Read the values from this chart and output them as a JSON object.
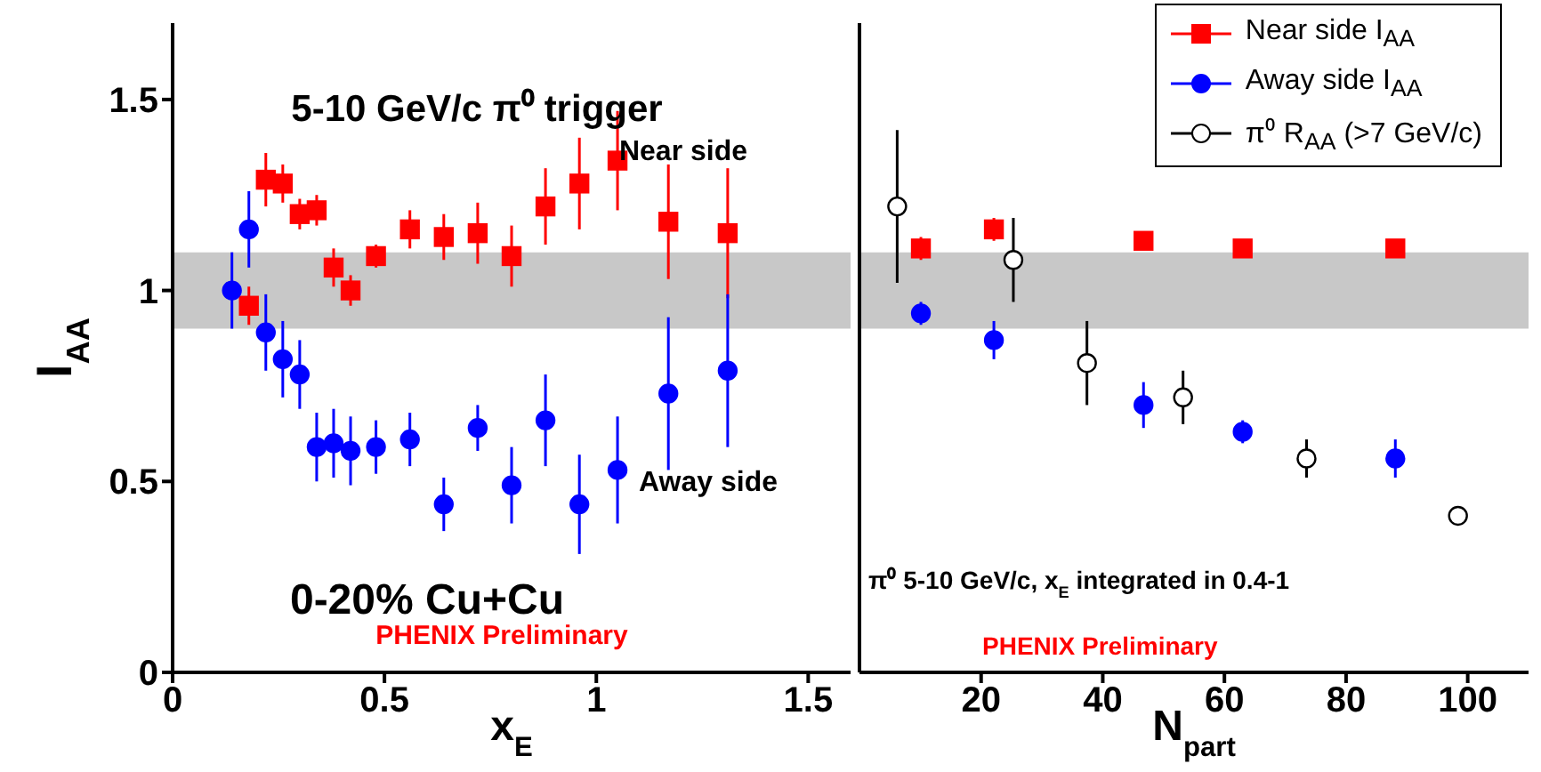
{
  "chart_data": [
    {
      "type": "scatter",
      "xlabel": "x$_{E}$",
      "ylabel": "I$_{AA}$",
      "xlim": [
        0,
        1.6
      ],
      "ylim": [
        0,
        1.7
      ],
      "xticks": [
        0,
        0.5,
        1,
        1.5
      ],
      "yticks": [
        0,
        0.5,
        1,
        1.5
      ],
      "legend": false,
      "bands": [
        {
          "axis": "y",
          "from": 0.9,
          "to": 1.1,
          "color": "#c8c8c8"
        }
      ],
      "annotations": [
        "5-10 GeV/c π⁰ trigger",
        "Near side",
        "Away side",
        "0-20% Cu+Cu",
        "PHENIX Preliminary"
      ],
      "series": [
        {
          "color": "#ff0000",
          "marker": "square",
          "x": [
            0.18,
            0.22,
            0.26,
            0.3,
            0.34,
            0.38,
            0.42,
            0.48,
            0.56,
            0.64,
            0.72,
            0.8,
            0.88,
            0.96,
            1.05,
            1.17,
            1.31
          ],
          "values": [
            0.96,
            1.29,
            1.28,
            1.2,
            1.21,
            1.06,
            1.0,
            1.09,
            1.16,
            1.14,
            1.15,
            1.09,
            1.22,
            1.28,
            1.34,
            1.18,
            1.15
          ],
          "errors": [
            0.05,
            0.07,
            0.05,
            0.04,
            0.04,
            0.05,
            0.04,
            0.03,
            0.05,
            0.06,
            0.08,
            0.08,
            0.1,
            0.12,
            0.13,
            0.15,
            0.17
          ]
        },
        {
          "color": "#0000ff",
          "marker": "circle",
          "x": [
            0.14,
            0.18,
            0.22,
            0.26,
            0.3,
            0.34,
            0.38,
            0.42,
            0.48,
            0.56,
            0.64,
            0.72,
            0.8,
            0.88,
            0.96,
            1.05,
            1.17,
            1.31
          ],
          "values": [
            1.0,
            1.16,
            0.89,
            0.82,
            0.78,
            0.59,
            0.6,
            0.58,
            0.59,
            0.61,
            0.44,
            0.64,
            0.49,
            0.66,
            0.44,
            0.53,
            0.73,
            0.79
          ],
          "errors": [
            0.1,
            0.1,
            0.1,
            0.1,
            0.09,
            0.09,
            0.09,
            0.09,
            0.07,
            0.07,
            0.07,
            0.06,
            0.1,
            0.12,
            0.13,
            0.14,
            0.2,
            0.2
          ]
        }
      ]
    },
    {
      "type": "scatter",
      "xlabel": "N$_{part}$",
      "xlim": [
        0,
        110
      ],
      "ylim": [
        0,
        1.7
      ],
      "xticks": [
        20,
        40,
        60,
        80,
        100
      ],
      "yticks": [
        0,
        0.5,
        1,
        1.5
      ],
      "tick_labels": "x",
      "legend": "top right",
      "bands": [
        {
          "axis": "y",
          "from": 0.9,
          "to": 1.1,
          "color": "#c8c8c8"
        }
      ],
      "annotations": [
        "π⁰ 5-10 GeV/c, x$_{E}$ integrated in 0.4-1",
        "PHENIX Preliminary"
      ],
      "series": [
        {
          "name": "Near side I$_{AA}$",
          "color": "#ff0000",
          "marker": "square",
          "x": [
            10.1,
            22.1,
            46.7,
            63.0,
            88.1
          ],
          "values": [
            1.11,
            1.16,
            1.13,
            1.11,
            1.11
          ],
          "errors": [
            0.03,
            0.03,
            0.02,
            0.01,
            0.02
          ]
        },
        {
          "name": "Away side I$_{AA}$",
          "color": "#0000ff",
          "marker": "circle",
          "x": [
            10.1,
            22.1,
            46.7,
            63.0,
            88.1
          ],
          "values": [
            0.94,
            0.87,
            0.7,
            0.63,
            0.56
          ],
          "errors": [
            0.03,
            0.05,
            0.06,
            0.03,
            0.05
          ]
        },
        {
          "name": "π⁰ R$_{AA}$ (>7 GeV/c)",
          "color": "#000000",
          "marker": "circle",
          "x": [
            6.2,
            25.3,
            37.4,
            53.2,
            73.5,
            98.4
          ],
          "values": [
            1.22,
            1.08,
            0.81,
            0.72,
            0.56,
            0.41
          ],
          "errors": [
            0.2,
            0.11,
            0.11,
            0.07,
            0.05,
            0.02
          ]
        }
      ]
    }
  ]
}
